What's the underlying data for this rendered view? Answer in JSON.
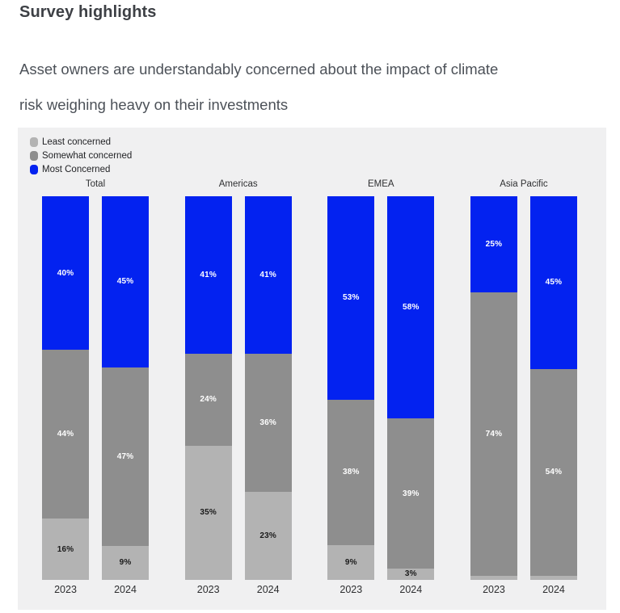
{
  "page": {
    "title": "Survey highlights",
    "subtitle": "Asset owners are understandably concerned about the impact of climate risk weighing heavy on their investments",
    "subtitle_lines": [
      "Asset owners are understandably concerned about the impact of climate",
      "risk weighing heavy on their investments"
    ]
  },
  "colors": {
    "most_concerned": "#0322f0",
    "somewhat_concerned": "#8e8e8e",
    "least_concerned": "#b3b3b3",
    "panel_bg": "#f0f0f1",
    "label_on_dark": "#ffffff",
    "label_on_light": "#1a1a1a"
  },
  "legend": {
    "items": [
      {
        "id": "least-concerned",
        "label": "Least concerned",
        "color": "#b3b3b3"
      },
      {
        "id": "somewhat-concerned",
        "label": "Somewhat concerned",
        "color": "#8e8e8e"
      },
      {
        "id": "most-concerned",
        "label": "Most Concerned",
        "color": "#0322f0"
      }
    ]
  },
  "chart_data": {
    "type": "bar",
    "stacked": true,
    "unit": "%",
    "legend_position": "top-left",
    "grid": false,
    "stack_order_top_to_bottom": [
      "Most Concerned",
      "Somewhat concerned",
      "Least concerned"
    ],
    "groups": [
      {
        "label": "Total",
        "bars": [
          {
            "year": "2023",
            "segments": [
              {
                "series": "Most Concerned",
                "value": 40,
                "label": "40%"
              },
              {
                "series": "Somewhat concerned",
                "value": 44,
                "label": "44%"
              },
              {
                "series": "Least concerned",
                "value": 16,
                "label": "16%"
              }
            ]
          },
          {
            "year": "2024",
            "segments": [
              {
                "series": "Most Concerned",
                "value": 45,
                "label": "45%"
              },
              {
                "series": "Somewhat concerned",
                "value": 47,
                "label": "47%"
              },
              {
                "series": "Least concerned",
                "value": 9,
                "label": "9%"
              }
            ]
          }
        ]
      },
      {
        "label": "Americas",
        "bars": [
          {
            "year": "2023",
            "segments": [
              {
                "series": "Most Concerned",
                "value": 41,
                "label": "41%"
              },
              {
                "series": "Somewhat concerned",
                "value": 24,
                "label": "24%"
              },
              {
                "series": "Least concerned",
                "value": 35,
                "label": "35%"
              }
            ]
          },
          {
            "year": "2024",
            "segments": [
              {
                "series": "Most Concerned",
                "value": 41,
                "label": "41%"
              },
              {
                "series": "Somewhat concerned",
                "value": 36,
                "label": "36%"
              },
              {
                "series": "Least concerned",
                "value": 23,
                "label": "23%"
              }
            ]
          }
        ]
      },
      {
        "label": "EMEA",
        "bars": [
          {
            "year": "2023",
            "segments": [
              {
                "series": "Most Concerned",
                "value": 53,
                "label": "53%"
              },
              {
                "series": "Somewhat concerned",
                "value": 38,
                "label": "38%"
              },
              {
                "series": "Least concerned",
                "value": 9,
                "label": "9%"
              }
            ]
          },
          {
            "year": "2024",
            "segments": [
              {
                "series": "Most Concerned",
                "value": 58,
                "label": "58%"
              },
              {
                "series": "Somewhat concerned",
                "value": 39,
                "label": "39%"
              },
              {
                "series": "Least concerned",
                "value": 3,
                "label": "3%"
              }
            ]
          }
        ]
      },
      {
        "label": "Asia Pacific",
        "bars": [
          {
            "year": "2023",
            "segments": [
              {
                "series": "Most Concerned",
                "value": 25,
                "label": "25%"
              },
              {
                "series": "Somewhat concerned",
                "value": 74,
                "label": "74%"
              },
              {
                "series": "Least concerned",
                "value": 1,
                "label": ""
              }
            ]
          },
          {
            "year": "2024",
            "segments": [
              {
                "series": "Most Concerned",
                "value": 45,
                "label": "45%"
              },
              {
                "series": "Somewhat concerned",
                "value": 54,
                "label": "54%"
              },
              {
                "series": "Least concerned",
                "value": 1,
                "label": ""
              }
            ]
          }
        ]
      }
    ]
  }
}
